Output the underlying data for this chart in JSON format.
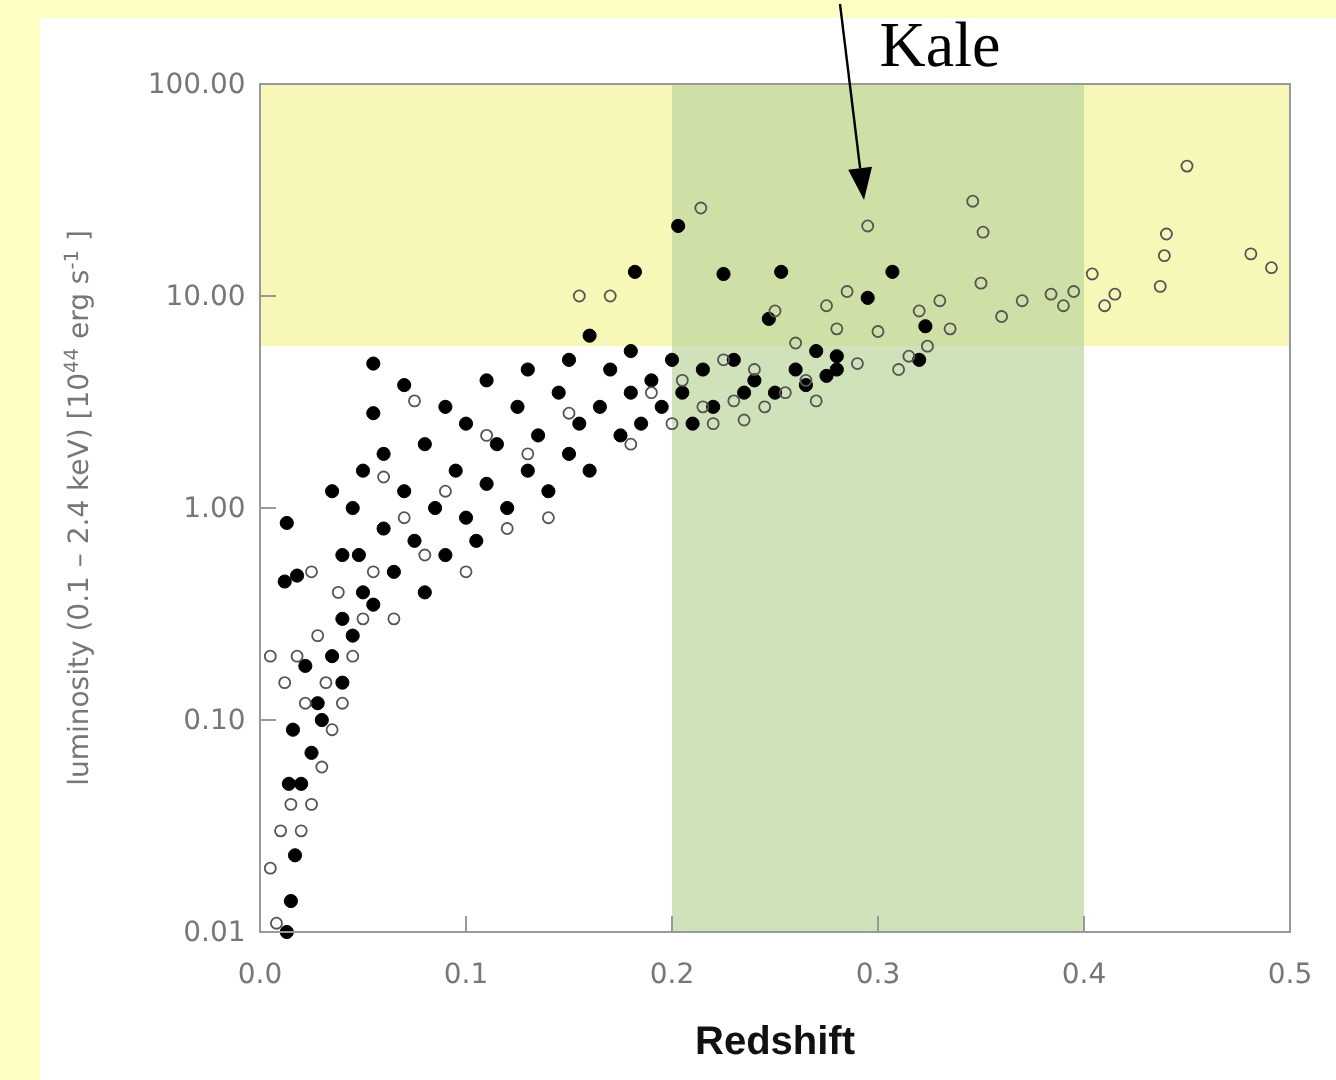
{
  "chart_data": {
    "type": "scatter",
    "xlabel": "Redshift",
    "ylabel": "luminosity (0.1 – 2.4 keV) [10$^{44}$ erg s$^{-1}$ ]",
    "xlim": [
      0,
      0.5
    ],
    "xticks": [
      {
        "value": 0,
        "label": "0.0"
      },
      {
        "value": 0.1,
        "label": "0.1"
      },
      {
        "value": 0.2,
        "label": "0.2"
      },
      {
        "value": 0.3,
        "label": "0.3"
      },
      {
        "value": 0.4,
        "label": "0.4"
      },
      {
        "value": 0.5,
        "label": "0.5"
      }
    ],
    "ylim": [
      0.01,
      100
    ],
    "yticks": [
      {
        "value": 0.01,
        "label": "0.01"
      },
      {
        "value": 0.1,
        "label": "0.10"
      },
      {
        "value": 1,
        "label": "1.00"
      },
      {
        "value": 10,
        "label": "10.00"
      },
      {
        "value": 100,
        "label": "100.00"
      }
    ],
    "log": "y",
    "grid": false,
    "marker": "circle",
    "bands": [
      {
        "axis": "y",
        "from": 5.8,
        "to": 100,
        "color": "#f4f49a"
      },
      {
        "axis": "x",
        "from": 0.2,
        "to": 0.4,
        "color": "#bcd59c"
      }
    ],
    "annotations": [
      "Kale"
    ],
    "series": [
      {
        "color": "#000000",
        "x": [
          0.013,
          0.015,
          0.017,
          0.014,
          0.02,
          0.016,
          0.025,
          0.028,
          0.022,
          0.012,
          0.013,
          0.018,
          0.03,
          0.035,
          0.04,
          0.04,
          0.045,
          0.05,
          0.048,
          0.055,
          0.035,
          0.04,
          0.045,
          0.05,
          0.055,
          0.055,
          0.06,
          0.06,
          0.065,
          0.07,
          0.07,
          0.075,
          0.08,
          0.08,
          0.085,
          0.09,
          0.09,
          0.095,
          0.1,
          0.1,
          0.105,
          0.11,
          0.11,
          0.115,
          0.12,
          0.125,
          0.13,
          0.13,
          0.135,
          0.14,
          0.145,
          0.15,
          0.15,
          0.155,
          0.16,
          0.16,
          0.165,
          0.17,
          0.175,
          0.18,
          0.18,
          0.182,
          0.185,
          0.19,
          0.195,
          0.2,
          0.203,
          0.205,
          0.21,
          0.215,
          0.22,
          0.225,
          0.23,
          0.235,
          0.24,
          0.247,
          0.25,
          0.253,
          0.26,
          0.265,
          0.27,
          0.275,
          0.28,
          0.28,
          0.295,
          0.307,
          0.323,
          0.32
        ],
        "values": [
          0.01,
          0.014,
          0.023,
          0.05,
          0.05,
          0.09,
          0.07,
          0.12,
          0.18,
          0.45,
          0.85,
          0.48,
          0.1,
          0.2,
          0.15,
          0.3,
          0.25,
          0.4,
          0.6,
          0.35,
          1.2,
          0.6,
          1.0,
          1.5,
          4.8,
          2.8,
          0.8,
          1.8,
          0.5,
          1.2,
          3.8,
          0.7,
          2.0,
          0.4,
          1.0,
          3.0,
          0.6,
          1.5,
          0.9,
          2.5,
          0.7,
          1.3,
          4.0,
          2.0,
          1.0,
          3.0,
          1.5,
          4.5,
          2.2,
          1.2,
          3.5,
          1.8,
          5.0,
          2.5,
          6.5,
          1.5,
          3.0,
          4.5,
          2.2,
          3.5,
          5.5,
          13,
          2.5,
          4.0,
          3.0,
          5.0,
          21.4,
          3.5,
          2.5,
          4.5,
          3.0,
          12.7,
          5.0,
          3.5,
          4.0,
          7.8,
          3.5,
          13,
          4.5,
          3.8,
          5.5,
          4.2,
          4.5,
          5.2,
          9.8,
          13,
          7.2,
          5.0
        ]
      },
      {
        "color": "#555555",
        "x": [
          0.005,
          0.008,
          0.005,
          0.01,
          0.012,
          0.015,
          0.018,
          0.02,
          0.022,
          0.025,
          0.025,
          0.028,
          0.03,
          0.032,
          0.035,
          0.038,
          0.04,
          0.045,
          0.05,
          0.055,
          0.06,
          0.065,
          0.07,
          0.075,
          0.08,
          0.09,
          0.1,
          0.11,
          0.12,
          0.13,
          0.14,
          0.15,
          0.155,
          0.17,
          0.18,
          0.19,
          0.2,
          0.205,
          0.214,
          0.215,
          0.22,
          0.225,
          0.23,
          0.235,
          0.24,
          0.245,
          0.25,
          0.255,
          0.26,
          0.265,
          0.27,
          0.275,
          0.28,
          0.285,
          0.29,
          0.295,
          0.3,
          0.31,
          0.315,
          0.32,
          0.324,
          0.33,
          0.335,
          0.346,
          0.351,
          0.35,
          0.36,
          0.37,
          0.384,
          0.39,
          0.395,
          0.404,
          0.41,
          0.415,
          0.437,
          0.439,
          0.44,
          0.45,
          0.481,
          0.491
        ],
        "values": [
          0.02,
          0.011,
          0.2,
          0.03,
          0.15,
          0.04,
          0.2,
          0.03,
          0.12,
          0.04,
          0.5,
          0.25,
          0.06,
          0.15,
          0.09,
          0.4,
          0.12,
          0.2,
          0.3,
          0.5,
          1.4,
          0.3,
          0.9,
          3.2,
          0.6,
          1.2,
          0.5,
          2.2,
          0.8,
          1.8,
          0.9,
          2.8,
          10,
          10,
          2.0,
          3.5,
          2.5,
          4.0,
          26,
          3.0,
          2.5,
          5.0,
          3.2,
          2.6,
          4.5,
          3.0,
          8.5,
          3.5,
          6.0,
          4.0,
          3.2,
          9.0,
          7.0,
          10.5,
          4.8,
          21.4,
          6.8,
          4.5,
          5.2,
          8.5,
          5.8,
          9.5,
          7.0,
          28,
          20,
          11.5,
          8.0,
          9.5,
          10.2,
          9.0,
          10.5,
          12.7,
          9.0,
          10.2,
          11.1,
          15.5,
          19.6,
          41,
          15.8,
          13.6
        ]
      }
    ]
  }
}
